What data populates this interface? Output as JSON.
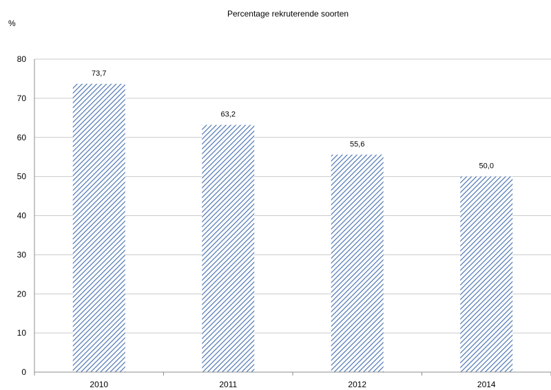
{
  "chart_data": {
    "type": "bar",
    "title": "Percentage rekruterende soorten",
    "ylabel": "%",
    "xlabel": "",
    "categories": [
      "2010",
      "2011",
      "2012",
      "2014"
    ],
    "values": [
      73.7,
      63.2,
      55.6,
      50.0
    ],
    "value_labels": [
      "73,7",
      "63,2",
      "55,6",
      "50,0"
    ],
    "ylim": [
      0,
      80
    ],
    "yticks": [
      0,
      10,
      20,
      30,
      40,
      50,
      60,
      70,
      80
    ],
    "grid": true,
    "legend": "none",
    "bar_fill": "diagonal-hatch",
    "bar_color": "#4a74b3"
  }
}
